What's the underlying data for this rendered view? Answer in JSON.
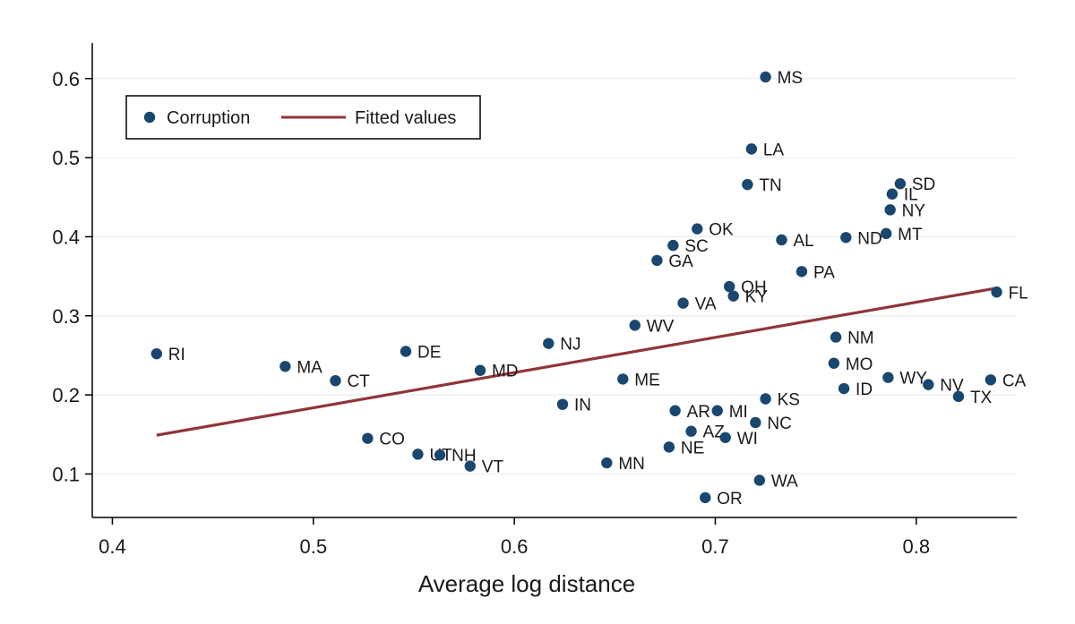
{
  "chart_data": {
    "type": "scatter",
    "xlabel": "Average log distance",
    "ylabel": "",
    "xlim": [
      0.39,
      0.85
    ],
    "ylim": [
      0.045,
      0.645
    ],
    "xticks": [
      0.4,
      0.5,
      0.6,
      0.7,
      0.8
    ],
    "xtick_labels": [
      "0.4",
      "0.5",
      "0.6",
      "0.7",
      "0.8"
    ],
    "yticks": [
      0.1,
      0.2,
      0.3,
      0.4,
      0.5,
      0.6
    ],
    "ytick_labels": [
      "0.1",
      "0.2",
      "0.3",
      "0.4",
      "0.5",
      "0.6"
    ],
    "grid": "horizontal",
    "legend_position": "top-left",
    "colors": {
      "points": "#1a476f",
      "fit": "#90353b",
      "grid": "#eaf2f3",
      "axis": "#000000"
    },
    "series": [
      {
        "name": "Corruption",
        "kind": "scatter",
        "points": [
          {
            "label": "RI",
            "x": 0.422,
            "y": 0.252
          },
          {
            "label": "MA",
            "x": 0.486,
            "y": 0.236
          },
          {
            "label": "CT",
            "x": 0.511,
            "y": 0.218
          },
          {
            "label": "CO",
            "x": 0.527,
            "y": 0.145
          },
          {
            "label": "DE",
            "x": 0.546,
            "y": 0.255
          },
          {
            "label": "UT",
            "x": 0.552,
            "y": 0.125
          },
          {
            "label": "NH",
            "x": 0.563,
            "y": 0.124
          },
          {
            "label": "VT",
            "x": 0.578,
            "y": 0.11
          },
          {
            "label": "MD",
            "x": 0.583,
            "y": 0.231
          },
          {
            "label": "NJ",
            "x": 0.617,
            "y": 0.265
          },
          {
            "label": "IN",
            "x": 0.624,
            "y": 0.188
          },
          {
            "label": "MN",
            "x": 0.646,
            "y": 0.114
          },
          {
            "label": "ME",
            "x": 0.654,
            "y": 0.22
          },
          {
            "label": "WV",
            "x": 0.66,
            "y": 0.288
          },
          {
            "label": "GA",
            "x": 0.671,
            "y": 0.37
          },
          {
            "label": "NE",
            "x": 0.677,
            "y": 0.134
          },
          {
            "label": "SC",
            "x": 0.679,
            "y": 0.389
          },
          {
            "label": "AR",
            "x": 0.68,
            "y": 0.18
          },
          {
            "label": "VA",
            "x": 0.684,
            "y": 0.316
          },
          {
            "label": "AZ",
            "x": 0.688,
            "y": 0.154
          },
          {
            "label": "OK",
            "x": 0.691,
            "y": 0.41
          },
          {
            "label": "OR",
            "x": 0.695,
            "y": 0.07
          },
          {
            "label": "MI",
            "x": 0.701,
            "y": 0.18
          },
          {
            "label": "WI",
            "x": 0.705,
            "y": 0.146
          },
          {
            "label": "OH",
            "x": 0.707,
            "y": 0.337
          },
          {
            "label": "KY",
            "x": 0.709,
            "y": 0.325
          },
          {
            "label": "TN",
            "x": 0.716,
            "y": 0.466
          },
          {
            "label": "LA",
            "x": 0.718,
            "y": 0.511
          },
          {
            "label": "NC",
            "x": 0.72,
            "y": 0.165
          },
          {
            "label": "WA",
            "x": 0.722,
            "y": 0.092
          },
          {
            "label": "MS",
            "x": 0.725,
            "y": 0.602
          },
          {
            "label": "KS",
            "x": 0.725,
            "y": 0.195
          },
          {
            "label": "AL",
            "x": 0.733,
            "y": 0.396
          },
          {
            "label": "PA",
            "x": 0.743,
            "y": 0.356
          },
          {
            "label": "MO",
            "x": 0.759,
            "y": 0.24
          },
          {
            "label": "NM",
            "x": 0.76,
            "y": 0.273
          },
          {
            "label": "ID",
            "x": 0.764,
            "y": 0.208
          },
          {
            "label": "ND",
            "x": 0.765,
            "y": 0.399
          },
          {
            "label": "MT",
            "x": 0.785,
            "y": 0.404
          },
          {
            "label": "WY",
            "x": 0.786,
            "y": 0.222
          },
          {
            "label": "NY",
            "x": 0.787,
            "y": 0.434
          },
          {
            "label": "IL",
            "x": 0.788,
            "y": 0.454
          },
          {
            "label": "SD",
            "x": 0.792,
            "y": 0.467
          },
          {
            "label": "NV",
            "x": 0.806,
            "y": 0.213
          },
          {
            "label": "TX",
            "x": 0.821,
            "y": 0.198
          },
          {
            "label": "CA",
            "x": 0.837,
            "y": 0.219
          },
          {
            "label": "FL",
            "x": 0.84,
            "y": 0.33
          }
        ]
      },
      {
        "name": "Fitted values",
        "kind": "line",
        "points": [
          {
            "x": 0.422,
            "y": 0.149
          },
          {
            "x": 0.84,
            "y": 0.335
          }
        ]
      }
    ]
  }
}
